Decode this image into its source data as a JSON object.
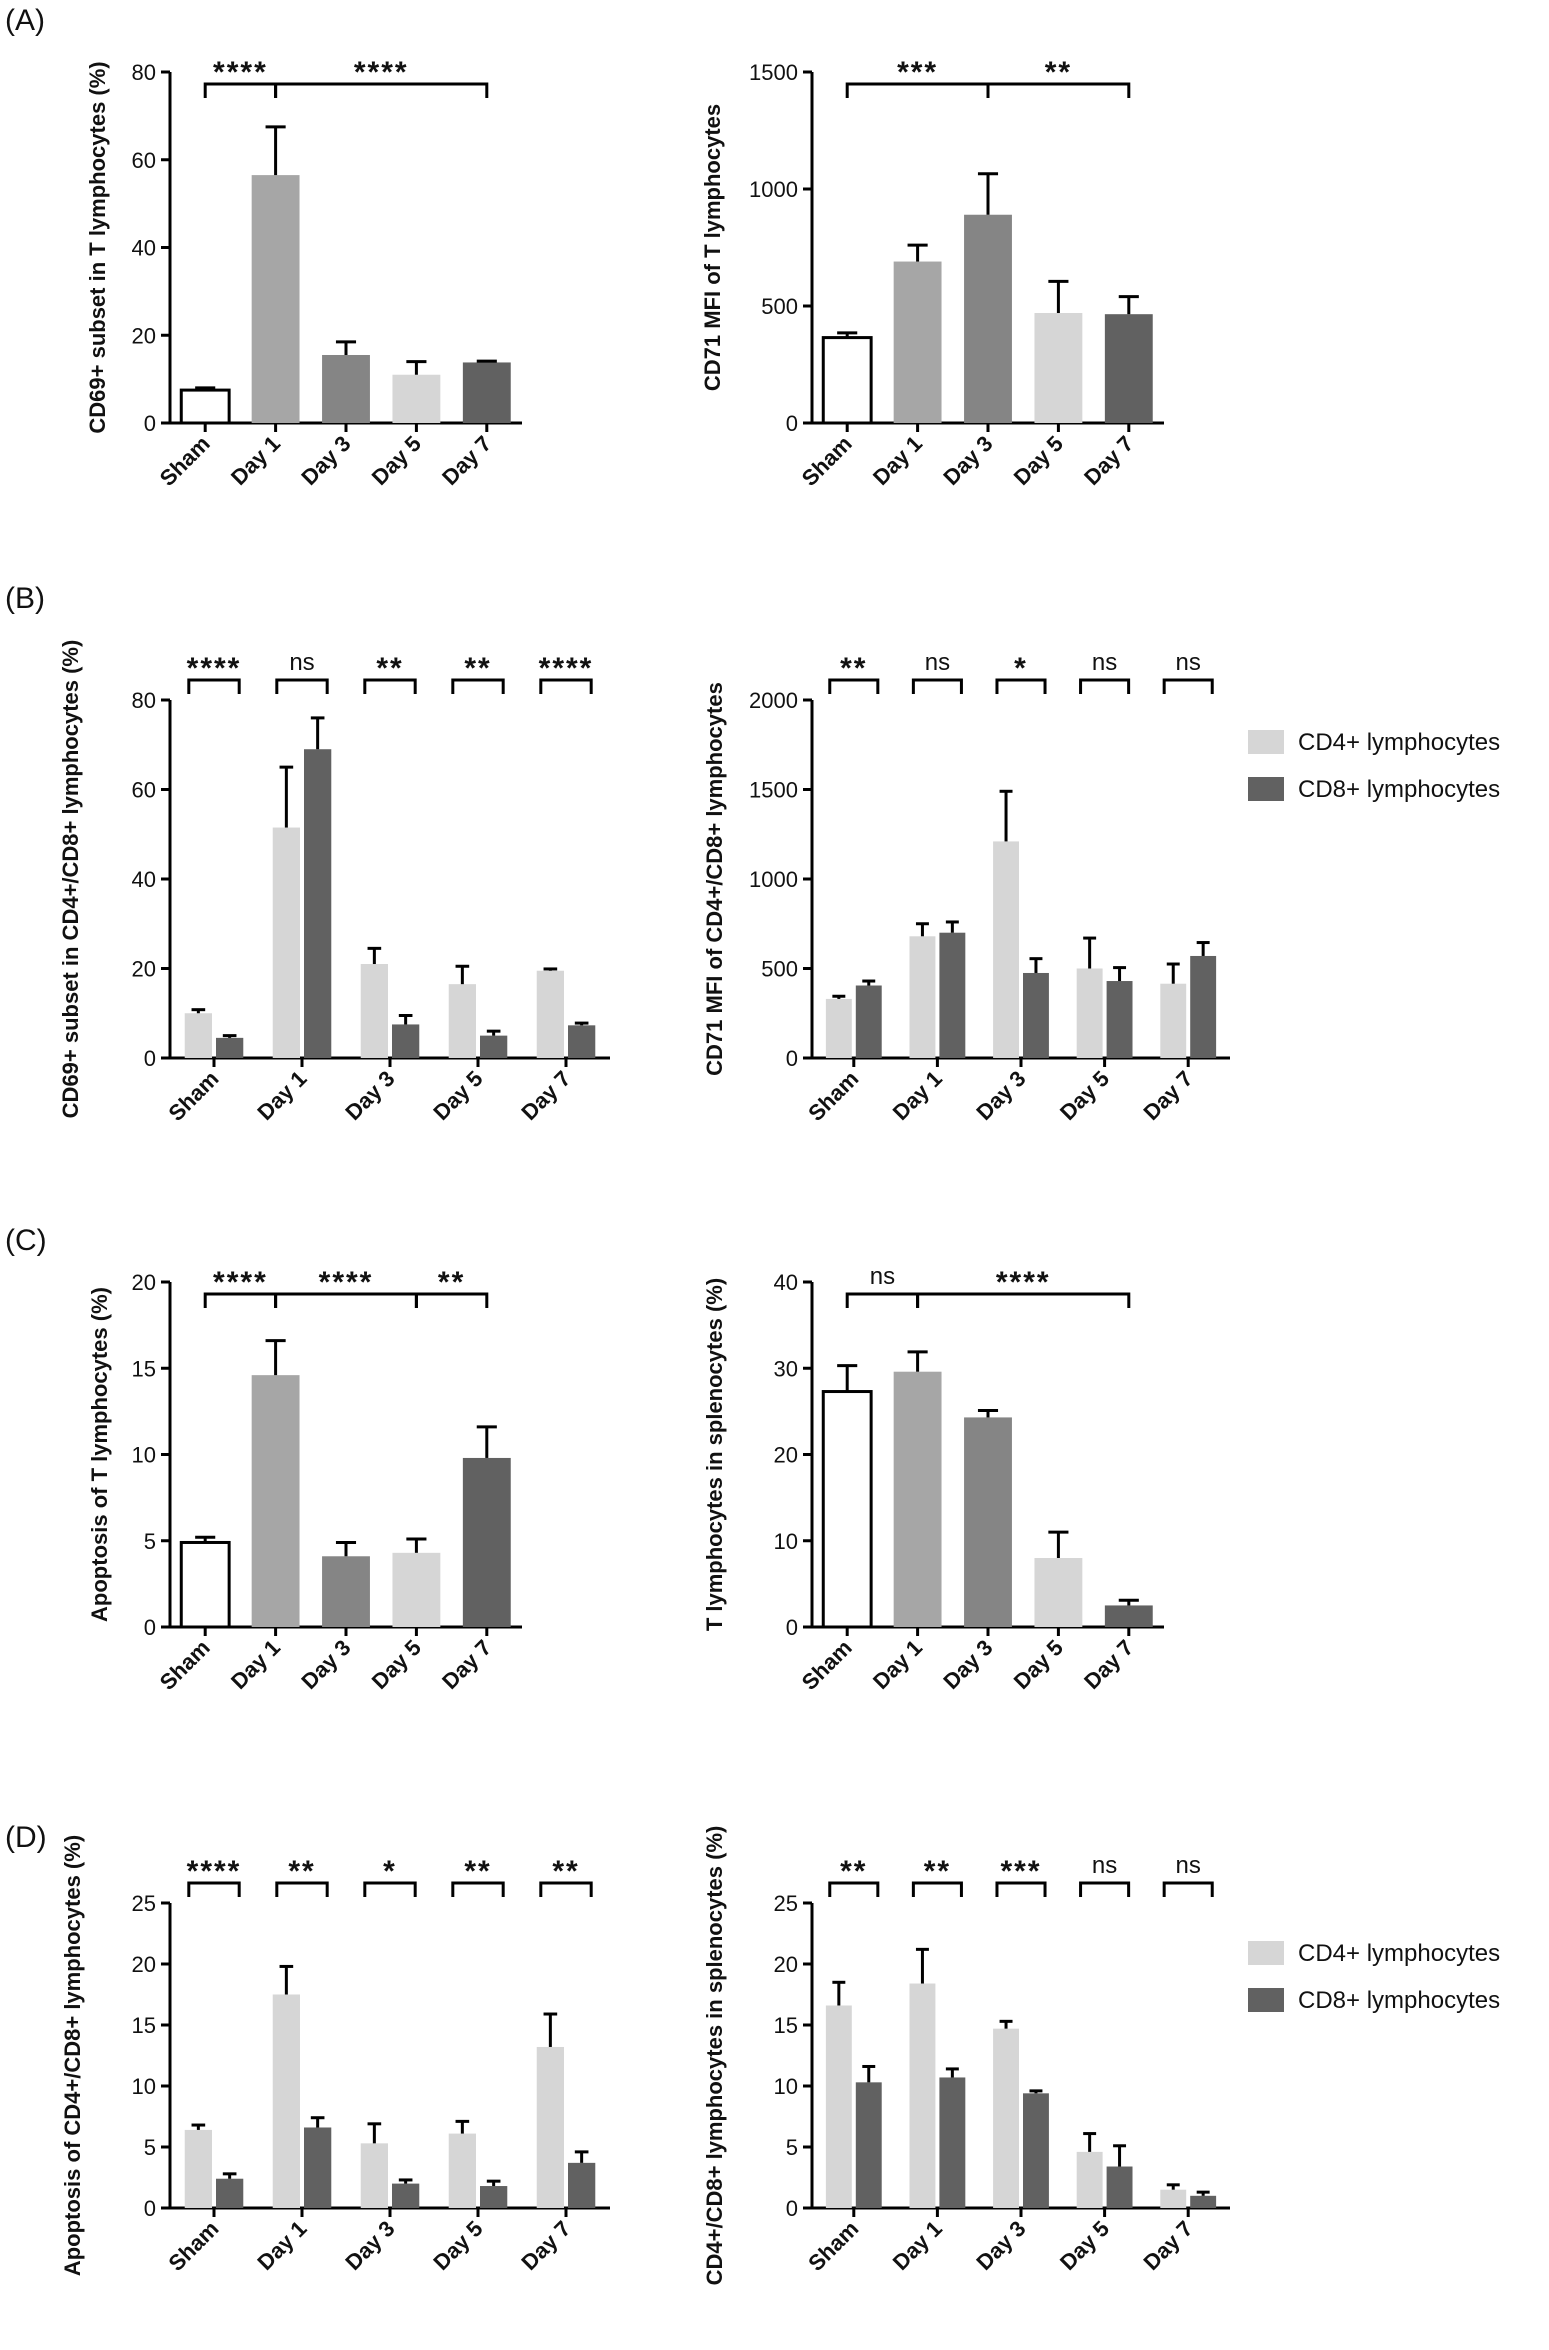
{
  "panel_labels": {
    "A": "(A)",
    "B": "(B)",
    "C": "(C)",
    "D": "(D)"
  },
  "colors": {
    "sham_fill": "#ffffff",
    "day1": "#a6a6a6",
    "day3": "#858585",
    "day5": "#d6d6d6",
    "day7": "#616161",
    "cd4": "#d6d6d6",
    "cd8": "#616161",
    "axis": "#000000"
  },
  "legend": {
    "cd4_label": "CD4+ lymphocytes",
    "cd8_label": "CD8+ lymphocytes"
  },
  "chart_data": [
    {
      "id": "A1",
      "panel": "A",
      "type": "bar",
      "ylabel": "CD69+ subset in T lymphocytes (%)",
      "categories": [
        "Sham",
        "Day 1",
        "Day 3",
        "Day 5",
        "Day 7"
      ],
      "values": [
        7.5,
        56.5,
        15.5,
        11,
        13.8
      ],
      "errors": [
        0.5,
        11,
        3,
        3,
        0.3
      ],
      "ylim": [
        0,
        80
      ],
      "yticks": [
        0,
        20,
        40,
        60,
        80
      ],
      "significance": [
        {
          "from": 0,
          "to": 1,
          "label": "****"
        },
        {
          "from": 1,
          "to": 4,
          "label": "****"
        }
      ]
    },
    {
      "id": "A2",
      "panel": "A",
      "type": "bar",
      "ylabel": "CD71 MFI of T lymphocytes",
      "categories": [
        "Sham",
        "Day 1",
        "Day 3",
        "Day 5",
        "Day 7"
      ],
      "values": [
        365,
        690,
        890,
        470,
        465
      ],
      "errors": [
        20,
        70,
        175,
        135,
        75
      ],
      "ylim": [
        0,
        1500
      ],
      "yticks": [
        0,
        500,
        1000,
        1500
      ],
      "significance": [
        {
          "from": 0,
          "to": 2,
          "label": "***"
        },
        {
          "from": 2,
          "to": 4,
          "label": "**"
        }
      ]
    },
    {
      "id": "B1",
      "panel": "B",
      "type": "grouped-bar",
      "ylabel": "CD69+ subset in CD4+/CD8+ lymphocytes (%)",
      "categories": [
        "Sham",
        "Day 1",
        "Day 3",
        "Day 5",
        "Day 7"
      ],
      "series": [
        {
          "name": "CD4+ lymphocytes",
          "values": [
            10,
            51.5,
            21,
            16.5,
            19.5
          ],
          "errors": [
            0.8,
            13.5,
            3.5,
            4,
            0.4
          ]
        },
        {
          "name": "CD8+ lymphocytes",
          "values": [
            4.5,
            69,
            7.5,
            5,
            7.3
          ],
          "errors": [
            0.5,
            7,
            2,
            1,
            0.5
          ]
        }
      ],
      "ylim": [
        0,
        80
      ],
      "yticks": [
        0,
        20,
        40,
        60,
        80
      ],
      "significance": [
        "****",
        "ns",
        "**",
        "**",
        "****"
      ]
    },
    {
      "id": "B2",
      "panel": "B",
      "type": "grouped-bar",
      "ylabel": "CD71 MFI of CD4+/CD8+ lymphocytes",
      "categories": [
        "Sham",
        "Day 1",
        "Day 3",
        "Day 5",
        "Day 7"
      ],
      "series": [
        {
          "name": "CD4+ lymphocytes",
          "values": [
            330,
            680,
            1210,
            500,
            415
          ],
          "errors": [
            15,
            70,
            280,
            170,
            110
          ]
        },
        {
          "name": "CD8+ lymphocytes",
          "values": [
            405,
            700,
            475,
            430,
            570
          ],
          "errors": [
            25,
            60,
            80,
            75,
            75
          ]
        }
      ],
      "ylim": [
        0,
        2000
      ],
      "yticks": [
        0,
        500,
        1000,
        1500,
        2000
      ],
      "significance": [
        "**",
        "ns",
        "*",
        "ns",
        "ns"
      ],
      "legend": true
    },
    {
      "id": "C1",
      "panel": "C",
      "type": "bar",
      "ylabel": "Apoptosis of T lymphocytes (%)",
      "categories": [
        "Sham",
        "Day 1",
        "Day 3",
        "Day 5",
        "Day 7"
      ],
      "values": [
        4.9,
        14.6,
        4.1,
        4.3,
        9.8
      ],
      "errors": [
        0.3,
        2,
        0.8,
        0.8,
        1.8
      ],
      "ylim": [
        0,
        20
      ],
      "yticks": [
        0,
        5,
        10,
        15,
        20
      ],
      "significance": [
        {
          "from": 0,
          "to": 1,
          "label": "****"
        },
        {
          "from": 1,
          "to": 3,
          "label": "****"
        },
        {
          "from": 3,
          "to": 4,
          "label": "**"
        }
      ]
    },
    {
      "id": "C2",
      "panel": "C",
      "type": "bar",
      "ylabel": "T lymphocytes in splenocytes (%)",
      "categories": [
        "Sham",
        "Day 1",
        "Day 3",
        "Day 5",
        "Day 7"
      ],
      "values": [
        27.3,
        29.6,
        24.3,
        8,
        2.5
      ],
      "errors": [
        3,
        2.3,
        0.8,
        3,
        0.6
      ],
      "ylim": [
        0,
        40
      ],
      "yticks": [
        0,
        10,
        20,
        30,
        40
      ],
      "significance": [
        {
          "from": 0,
          "to": 1,
          "label": "ns"
        },
        {
          "from": 1,
          "to": 4,
          "label": "****"
        }
      ]
    },
    {
      "id": "D1",
      "panel": "D",
      "type": "grouped-bar",
      "ylabel": "Apoptosis of CD4+/CD8+ lymphocytes (%)",
      "categories": [
        "Sham",
        "Day 1",
        "Day 3",
        "Day 5",
        "Day 7"
      ],
      "series": [
        {
          "name": "CD4+ lymphocytes",
          "values": [
            6.4,
            17.5,
            5.3,
            6.1,
            13.2
          ],
          "errors": [
            0.4,
            2.3,
            1.6,
            1,
            2.7
          ]
        },
        {
          "name": "CD8+ lymphocytes",
          "values": [
            2.4,
            6.6,
            2,
            1.8,
            3.7
          ],
          "errors": [
            0.4,
            0.8,
            0.3,
            0.4,
            0.9
          ]
        }
      ],
      "ylim": [
        0,
        25
      ],
      "yticks": [
        0,
        5,
        10,
        15,
        20,
        25
      ],
      "significance": [
        "****",
        "**",
        "*",
        "**",
        "**"
      ]
    },
    {
      "id": "D2",
      "panel": "D",
      "type": "grouped-bar",
      "ylabel": "CD4+/CD8+ lymphocytes in splenocytes (%)",
      "categories": [
        "Sham",
        "Day 1",
        "Day 3",
        "Day 5",
        "Day 7"
      ],
      "series": [
        {
          "name": "CD4+ lymphocytes",
          "values": [
            16.6,
            18.4,
            14.7,
            4.6,
            1.5
          ],
          "errors": [
            1.9,
            2.8,
            0.6,
            1.5,
            0.4
          ]
        },
        {
          "name": "CD8+ lymphocytes",
          "values": [
            10.3,
            10.7,
            9.4,
            3.4,
            1
          ],
          "errors": [
            1.3,
            0.7,
            0.2,
            1.7,
            0.3
          ]
        }
      ],
      "ylim": [
        0,
        25
      ],
      "yticks": [
        0,
        5,
        10,
        15,
        20,
        25
      ],
      "significance": [
        "**",
        "**",
        "***",
        "ns",
        "ns"
      ],
      "legend": true
    }
  ]
}
